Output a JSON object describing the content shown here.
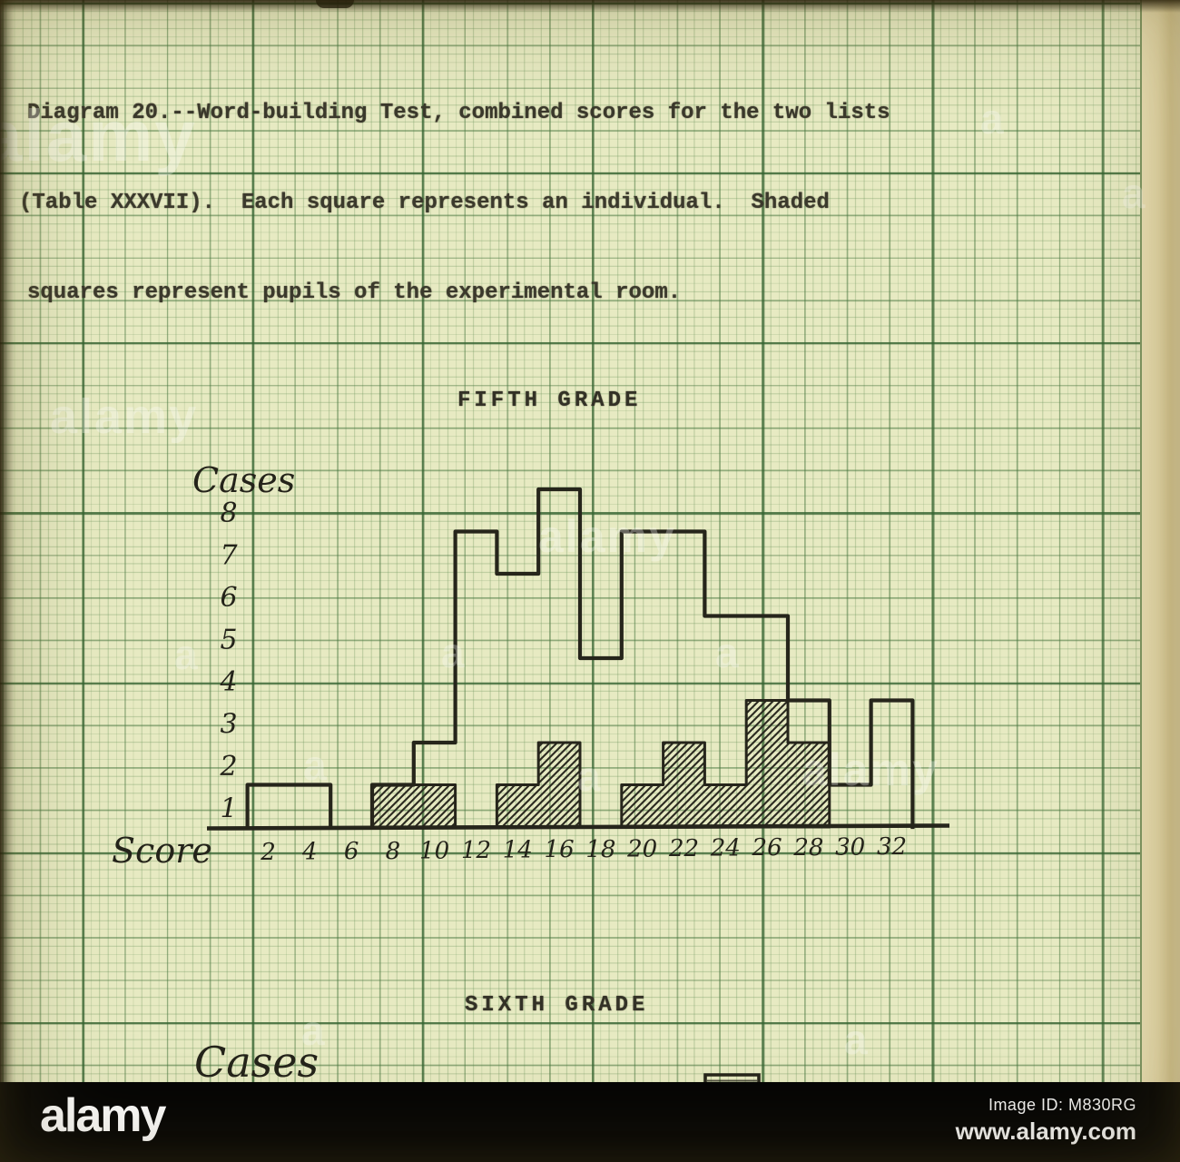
{
  "page": {
    "caption": [
      "Diagram 20.--Word-building Test, combined scores for the two lists",
      "(Table XXXVII).  Each square represents an individual.  Shaded",
      "squares represent pupils of the experimental room."
    ]
  },
  "chart_data": {
    "type": "bar",
    "variant": "hand-drawn histogram of unit squares on green graph paper",
    "title": "FIFTH GRADE",
    "xlabel": "Score",
    "ylabel": "Cases",
    "categories": [
      2,
      4,
      6,
      8,
      10,
      12,
      14,
      16,
      18,
      20,
      22,
      24,
      26,
      28,
      30,
      32
    ],
    "series": [
      {
        "name": "All pupils (open outline)",
        "values": [
          1,
          1,
          0,
          1,
          2,
          7,
          6,
          8,
          4,
          7,
          7,
          5,
          5,
          3,
          1,
          3
        ]
      },
      {
        "name": "Experimental room pupils (shaded squares)",
        "values": [
          0,
          0,
          0,
          1,
          1,
          0,
          1,
          2,
          0,
          1,
          2,
          1,
          3,
          2,
          0,
          0
        ]
      }
    ],
    "yticks": [
      1,
      2,
      3,
      4,
      5,
      6,
      7,
      8
    ],
    "ylim": [
      0,
      9
    ],
    "grid": "graph paper",
    "legend_position": "none",
    "second_chart_partial": {
      "title": "SIXTH GRADE",
      "ylabel": "Cases",
      "note": "only title, Cases label and top of one bar visible before image is cut off"
    }
  },
  "sixth": {
    "title": "SIXTH GRADE",
    "ylabel": "Cases"
  },
  "watermarks": {
    "word": "alamy",
    "letter": "a"
  },
  "footer": {
    "logo": "alamy",
    "image_id": "Image ID: M830RG",
    "site": "www.alamy.com"
  }
}
